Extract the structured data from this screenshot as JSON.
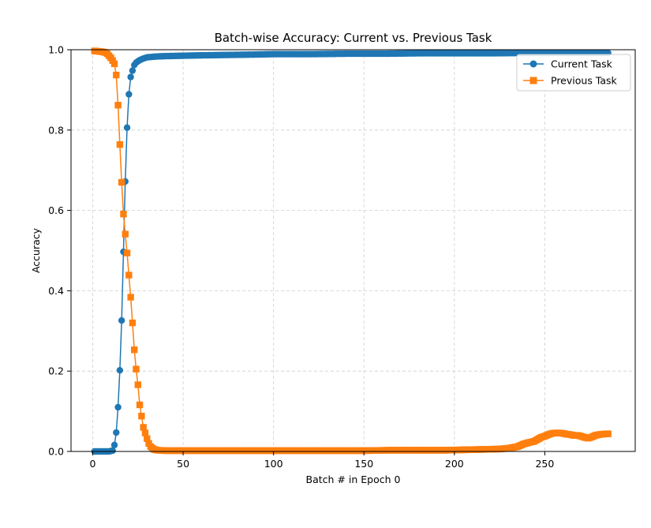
{
  "chart_data": {
    "type": "line",
    "title": "Batch-wise Accuracy: Current vs. Previous Task",
    "xlabel": "Batch # in Epoch 0",
    "ylabel": "Accuracy",
    "xlim": [
      -12,
      300
    ],
    "ylim": [
      0,
      1
    ],
    "xticks": [
      0,
      50,
      100,
      150,
      200,
      250
    ],
    "yticks": [
      0.0,
      0.2,
      0.4,
      0.6,
      0.8,
      1.0
    ],
    "grid": true,
    "legend_position": "top-right",
    "series": [
      {
        "name": "Current Task",
        "color": "#1f77b4",
        "marker": "circle",
        "points": [
          [
            1,
            0.0
          ],
          [
            5,
            0.0
          ],
          [
            9,
            0.0
          ],
          [
            11,
            0.002
          ],
          [
            12,
            0.016
          ],
          [
            13,
            0.047
          ],
          [
            14,
            0.11
          ],
          [
            15,
            0.202
          ],
          [
            16,
            0.326
          ],
          [
            17,
            0.497
          ],
          [
            18,
            0.672
          ],
          [
            19,
            0.806
          ],
          [
            20,
            0.889
          ],
          [
            21,
            0.932
          ],
          [
            22,
            0.948
          ],
          [
            23,
            0.962
          ],
          [
            24,
            0.968
          ],
          [
            26,
            0.974
          ],
          [
            28,
            0.978
          ],
          [
            30,
            0.981
          ],
          [
            35,
            0.983
          ],
          [
            40,
            0.984
          ],
          [
            50,
            0.985
          ],
          [
            60,
            0.986
          ],
          [
            75,
            0.987
          ],
          [
            90,
            0.988
          ],
          [
            100,
            0.989
          ],
          [
            120,
            0.989
          ],
          [
            140,
            0.99
          ],
          [
            160,
            0.99
          ],
          [
            180,
            0.991
          ],
          [
            200,
            0.991
          ],
          [
            220,
            0.991
          ],
          [
            240,
            0.992
          ],
          [
            260,
            0.992
          ],
          [
            285,
            0.992
          ]
        ]
      },
      {
        "name": "Previous Task",
        "color": "#ff7f0e",
        "marker": "square",
        "points": [
          [
            1,
            0.997
          ],
          [
            3,
            0.996
          ],
          [
            5,
            0.995
          ],
          [
            7,
            0.993
          ],
          [
            8,
            0.99
          ],
          [
            9,
            0.985
          ],
          [
            10,
            0.98
          ],
          [
            11,
            0.973
          ],
          [
            12,
            0.965
          ],
          [
            13,
            0.937
          ],
          [
            14,
            0.862
          ],
          [
            15,
            0.764
          ],
          [
            16,
            0.67
          ],
          [
            17,
            0.591
          ],
          [
            18,
            0.541
          ],
          [
            19,
            0.494
          ],
          [
            20,
            0.439
          ],
          [
            21,
            0.384
          ],
          [
            22,
            0.32
          ],
          [
            23,
            0.253
          ],
          [
            24,
            0.205
          ],
          [
            25,
            0.166
          ],
          [
            26,
            0.116
          ],
          [
            27,
            0.088
          ],
          [
            28,
            0.06
          ],
          [
            29,
            0.046
          ],
          [
            30,
            0.032
          ],
          [
            31,
            0.02
          ],
          [
            32,
            0.012
          ],
          [
            34,
            0.005
          ],
          [
            36,
            0.003
          ],
          [
            40,
            0.002
          ],
          [
            60,
            0.002
          ],
          [
            100,
            0.002
          ],
          [
            150,
            0.002
          ],
          [
            165,
            0.003
          ],
          [
            180,
            0.003
          ],
          [
            195,
            0.003
          ],
          [
            205,
            0.004
          ],
          [
            215,
            0.005
          ],
          [
            225,
            0.006
          ],
          [
            230,
            0.008
          ],
          [
            235,
            0.012
          ],
          [
            238,
            0.018
          ],
          [
            241,
            0.022
          ],
          [
            244,
            0.025
          ],
          [
            246,
            0.03
          ],
          [
            248,
            0.035
          ],
          [
            250,
            0.038
          ],
          [
            252,
            0.042
          ],
          [
            254,
            0.045
          ],
          [
            256,
            0.046
          ],
          [
            258,
            0.046
          ],
          [
            260,
            0.045
          ],
          [
            262,
            0.043
          ],
          [
            264,
            0.042
          ],
          [
            266,
            0.04
          ],
          [
            268,
            0.04
          ],
          [
            270,
            0.038
          ],
          [
            272,
            0.035
          ],
          [
            274,
            0.033
          ],
          [
            276,
            0.036
          ],
          [
            278,
            0.04
          ],
          [
            280,
            0.042
          ],
          [
            282,
            0.043
          ],
          [
            285,
            0.044
          ]
        ]
      }
    ]
  }
}
